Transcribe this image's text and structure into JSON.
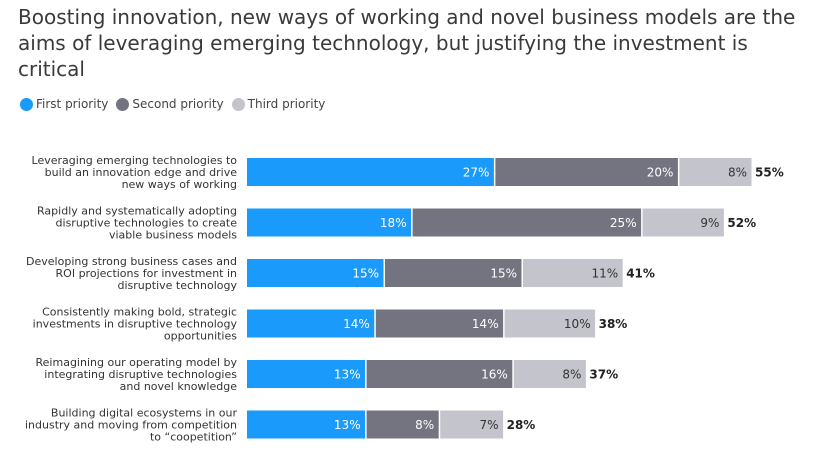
{
  "chart_data": {
    "type": "bar",
    "orientation": "horizontal",
    "stacked": true,
    "title": "Boosting innovation, new ways of working and novel business models are the\naims of leveraging emerging technology, but justifying the investment is\ncritical",
    "legend_position": "top-left",
    "grid": false,
    "categories": [
      [
        "Leveraging emerging technologies to",
        "build an innovation edge and drive",
        "new ways of working"
      ],
      [
        "Rapidly and systematically adopting",
        "disruptive technologies to create",
        "viable business models"
      ],
      [
        "Developing strong business cases and",
        "ROI projections for investment in",
        "disruptive technology"
      ],
      [
        "Consistently making bold, strategic",
        "investments in disruptive technology",
        "opportunities"
      ],
      [
        "Reimagining our operating model by",
        "integrating disruptive technologies",
        "and novel knowledge"
      ],
      [
        "Building digital ecosystems in our",
        "industry and moving from competition",
        "to “coopetition”"
      ]
    ],
    "series": [
      {
        "name": "First priority",
        "color": "#1a9afa",
        "text_color": "#ffffff",
        "values": [
          27,
          18,
          15,
          14,
          13,
          13
        ]
      },
      {
        "name": "Second priority",
        "color": "#747480",
        "text_color": "#ffffff",
        "values": [
          20,
          25,
          15,
          14,
          16,
          8
        ]
      },
      {
        "name": "Third priority",
        "color": "#c4c4cd",
        "text_color": "#333333",
        "values": [
          8,
          9,
          11,
          10,
          8,
          7
        ]
      }
    ],
    "totals": [
      55,
      52,
      41,
      38,
      37,
      28
    ],
    "value_suffix": "%"
  }
}
